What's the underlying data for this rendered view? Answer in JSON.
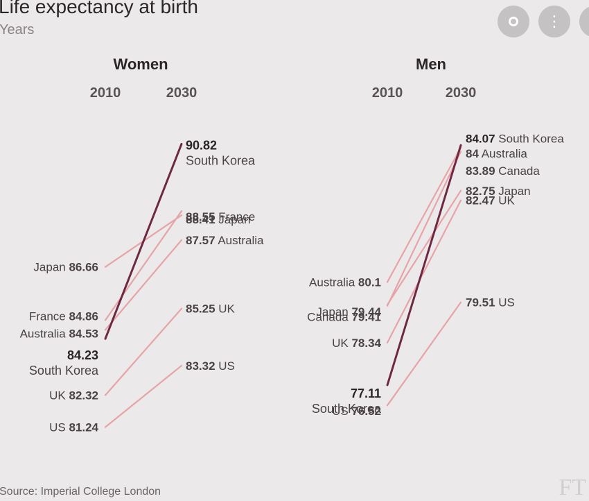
{
  "title": "Life expectancy at birth",
  "subtitle": "Years",
  "source": "Source: Imperial College London",
  "watermark": "FT",
  "overlay": {
    "lens_icon": "lens-icon",
    "more_icon": "more-vertical-icon",
    "extra_icon": "overflow-button"
  },
  "colors": {
    "highlight": "#6e2942",
    "line": "#e6a4a8",
    "background": "#ebe9ea",
    "text": "#4a4245"
  },
  "chart_data": [
    {
      "type": "slope",
      "panel_title": "Women",
      "start_label": "2010",
      "end_label": "2030",
      "ylim": [
        80.9,
        91.7
      ],
      "highlight": "South Korea",
      "series": [
        {
          "name": "South Korea",
          "start": 84.23,
          "end": 90.82,
          "start_label": "84.23",
          "end_label": "90.82"
        },
        {
          "name": "France",
          "start": 84.86,
          "end": 88.55,
          "start_label": "84.86",
          "end_label": "88.55"
        },
        {
          "name": "Japan",
          "start": 86.66,
          "end": 88.41,
          "start_label": "86.66",
          "end_label": "88.41"
        },
        {
          "name": "Australia",
          "start": 84.53,
          "end": 87.57,
          "start_label": "84.53",
          "end_label": "87.57"
        },
        {
          "name": "UK",
          "start": 82.32,
          "end": 85.25,
          "start_label": "82.32",
          "end_label": "85.25"
        },
        {
          "name": "US",
          "start": 81.24,
          "end": 83.32,
          "start_label": "81.24",
          "end_label": "83.32"
        }
      ]
    },
    {
      "type": "slope",
      "panel_title": "Men",
      "start_label": "2010",
      "end_label": "2030",
      "ylim": [
        76.0,
        84.7
      ],
      "highlight": "South Korea",
      "series": [
        {
          "name": "South Korea",
          "start": 77.11,
          "end": 84.07,
          "start_label": "77.11",
          "end_label": "84.07"
        },
        {
          "name": "Australia",
          "start": 80.1,
          "end": 84,
          "start_label": "80.1",
          "end_label": "84"
        },
        {
          "name": "Canada",
          "start": 79.41,
          "end": 83.89,
          "start_label": "79.41",
          "end_label": "83.89"
        },
        {
          "name": "Japan",
          "start": 79.44,
          "end": 82.75,
          "start_label": "79.44",
          "end_label": "82.75"
        },
        {
          "name": "UK",
          "start": 78.34,
          "end": 82.47,
          "start_label": "78.34",
          "end_label": "82.47"
        },
        {
          "name": "US",
          "start": 76.52,
          "end": 79.51,
          "start_label": "76.52",
          "end_label": "79.51"
        }
      ]
    }
  ]
}
